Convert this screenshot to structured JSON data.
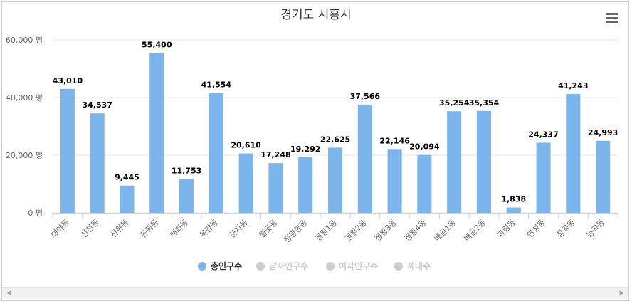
{
  "chart_data": {
    "type": "bar",
    "title": "경기도 시흥시",
    "xlabel": "",
    "ylabel": "",
    "ylim": [
      0,
      60000
    ],
    "yticks": [
      0,
      20000,
      40000,
      60000
    ],
    "ytick_labels": [
      "0 명",
      "20,000 명",
      "40,000 명",
      "60,000 명"
    ],
    "grid": true,
    "legend_position": "bottom-center",
    "categories": [
      "대야동",
      "신천동",
      "신현동",
      "은행동",
      "매화동",
      "목감동",
      "군자동",
      "월곶동",
      "정왕본동",
      "정왕1동",
      "정왕2동",
      "정왕3동",
      "정왕4동",
      "배곧1동",
      "배곧2동",
      "과림동",
      "연성동",
      "장곡동",
      "능곡동"
    ],
    "series": [
      {
        "name": "총인구수",
        "visible": true,
        "color": "#7cb5ec",
        "values": [
          43010,
          34537,
          9445,
          55400,
          11753,
          41554,
          20610,
          17248,
          19292,
          22625,
          37566,
          22146,
          20094,
          35254,
          35354,
          1838,
          24337,
          41243,
          24993
        ],
        "labels": [
          "43,010",
          "34,537",
          "9,445",
          "55,400",
          "11,753",
          "41,554",
          "20,610",
          "17,248",
          "19,292",
          "22,625",
          "37,566",
          "22,146",
          "20,094",
          "35,254",
          "35,354",
          "1,838",
          "24,337",
          "41,243",
          "24,993"
        ]
      },
      {
        "name": "남자인구수",
        "visible": false,
        "color": "#cccccc"
      },
      {
        "name": "여자인구수",
        "visible": false,
        "color": "#cccccc"
      },
      {
        "name": "세대수",
        "visible": false,
        "color": "#cccccc"
      }
    ]
  },
  "colors": {
    "bar": "#7cb5ec",
    "legend_inactive": "#cccccc",
    "grid": "#e6e6e6",
    "axis_text": "#666666",
    "title_text": "#333333"
  },
  "icons": {
    "menu": "hamburger-menu-icon",
    "scroll_left": "scroll-left-arrow-icon",
    "scroll_right": "scroll-right-arrow-icon"
  },
  "scrollbar": {
    "left_arrow": "◀",
    "right_arrow": "▶"
  }
}
